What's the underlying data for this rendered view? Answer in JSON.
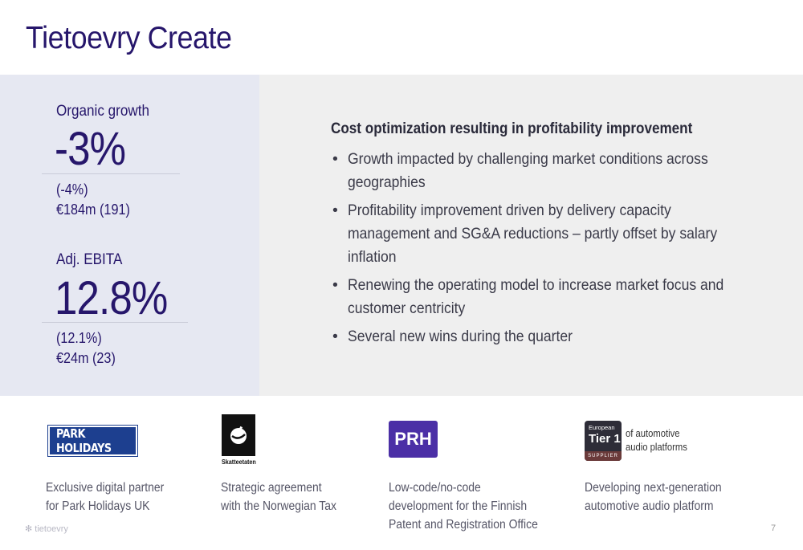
{
  "slide": {
    "title": "Tietoevry Create",
    "page_number": "7",
    "footer_brand": "tietoevry"
  },
  "metrics": [
    {
      "label": "Organic growth",
      "value": "-3%",
      "prior": "(-4%)",
      "amount": "€184m (191)"
    },
    {
      "label": "Adj. EBITA",
      "value": "12.8%",
      "prior": "(12.1%)",
      "amount": "€24m (23)"
    }
  ],
  "summary": {
    "headline": "Cost optimization resulting in profitability improvement",
    "bullets": [
      "Growth impacted by challenging market conditions across geographies",
      "Profitability improvement driven by delivery capacity management and SG&A reductions – partly offset by salary inflation",
      "Renewing the operating model to increase market focus and customer centricity",
      "Several new wins during the quarter"
    ]
  },
  "wins": [
    {
      "logo_icon": "park-holidays-logo",
      "logo_text": "PARK HOLIDAYS",
      "caption_1": "Exclusive digital partner",
      "caption_2": "for Park Holidays UK",
      "caption_3": ""
    },
    {
      "logo_icon": "skatteetaten-logo",
      "logo_text": "Skatteetaten",
      "caption_1": "Strategic agreement",
      "caption_2": "with the Norwegian Tax",
      "caption_3": ""
    },
    {
      "logo_icon": "prh-logo",
      "logo_text": "PRH",
      "caption_1": "Low-code/no-code",
      "caption_2": "development for the Finnish",
      "caption_3": "Patent and Registration Office"
    },
    {
      "logo_icon": "tier1-supplier-logo",
      "logo_text_1": "European",
      "logo_text_2": "Tier 1",
      "logo_text_3": "SUPPLIER",
      "side_1": "of automotive",
      "side_2": "audio platforms",
      "caption_1": "Developing next-generation",
      "caption_2": "automotive audio platform",
      "caption_3": ""
    }
  ],
  "colors": {
    "title": "#26166b",
    "left_panel": "#e6e8f2",
    "right_panel": "#efefef"
  }
}
